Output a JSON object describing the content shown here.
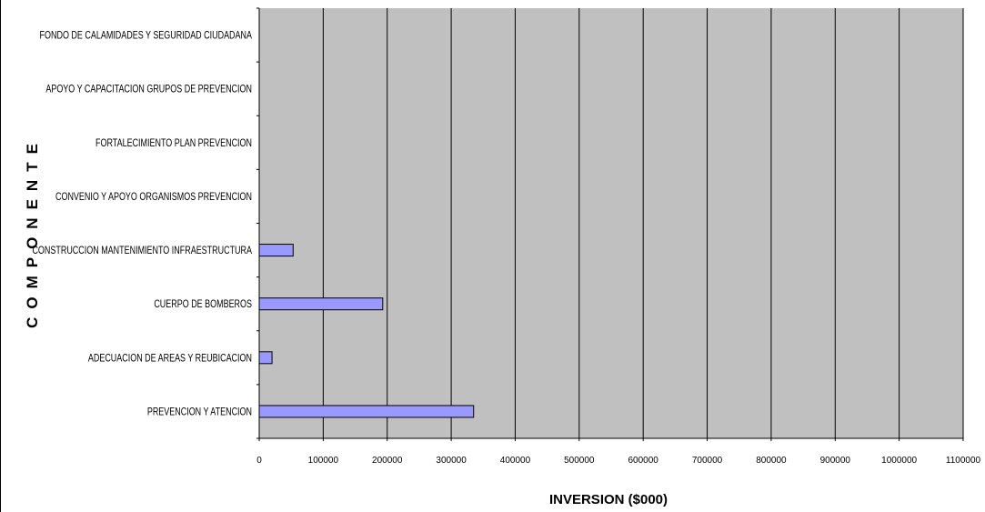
{
  "chart_data": {
    "type": "bar",
    "orientation": "horizontal",
    "categories": [
      "PREVENCION Y ATENCION",
      "ADECUACION DE AREAS Y REUBICACION",
      "CUERPO DE BOMBEROS",
      "CONSTRUCCION MANTENIMIENTO INFRAESTRUCTURA",
      "CONVENIO Y APOYO ORGANISMOS PREVENCION",
      "FORTALECIMIENTO PLAN PREVENCION",
      "APOYO Y CAPACITACION GRUPOS DE PREVENCION",
      "FONDO DE CALAMIDADES Y SEGURIDAD CIUDADANA"
    ],
    "values": [
      335000,
      20000,
      193000,
      53000,
      0,
      0,
      0,
      0
    ],
    "xlabel": "INVERSION ($000)",
    "ylabel": "COMPONENTE",
    "xlim": [
      0,
      1100000
    ],
    "xticks": [
      "0",
      "100000",
      "200000",
      "300000",
      "400000",
      "500000",
      "600000",
      "700000",
      "800000",
      "900000",
      "1000000",
      "1100000"
    ],
    "grid": true,
    "legend": "none",
    "colors": {
      "bar_fill": "#9999ff",
      "bar_stroke": "#000000",
      "plot_background": "#c0c0c0",
      "gridline": "#000000",
      "axis": "#000000"
    }
  }
}
